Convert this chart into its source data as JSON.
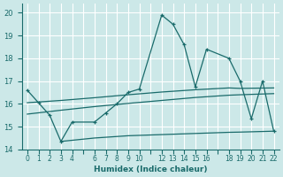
{
  "xlabel": "Humidex (Indice chaleur)",
  "bg_color": "#cce8e8",
  "grid_color": "#ffffff",
  "line_color": "#1a6b6b",
  "xlim": [
    -0.5,
    22.5
  ],
  "ylim": [
    14.0,
    20.4
  ],
  "xticks": [
    0,
    1,
    2,
    3,
    4,
    5,
    6,
    7,
    8,
    9,
    10,
    11,
    12,
    13,
    14,
    15,
    16,
    17,
    18,
    19,
    20,
    21,
    22
  ],
  "xtick_labels": [
    "0",
    "1",
    "2",
    "3",
    "4",
    "",
    "6",
    "7",
    "8",
    "9",
    "10",
    "",
    "1213",
    "14",
    "1516",
    "",
    "",
    "1819",
    "",
    "2021",
    "",
    "22",
    ""
  ],
  "yticks": [
    14,
    15,
    16,
    17,
    18,
    19,
    20
  ],
  "main_x": [
    0,
    1,
    2,
    3,
    4,
    6,
    7,
    8,
    9,
    10,
    12,
    13,
    14,
    15,
    16,
    18,
    19,
    20,
    21,
    22
  ],
  "main_y": [
    16.6,
    16.05,
    15.5,
    14.35,
    15.2,
    15.2,
    15.6,
    16.0,
    16.5,
    16.65,
    19.9,
    19.5,
    18.6,
    16.75,
    18.4,
    18.0,
    17.0,
    15.35,
    17.0,
    14.8
  ],
  "line1_x": [
    0,
    3,
    6,
    9,
    12,
    15,
    18,
    19,
    22
  ],
  "line1_y": [
    16.05,
    16.15,
    16.27,
    16.4,
    16.52,
    16.62,
    16.7,
    16.68,
    16.7
  ],
  "line2_x": [
    0,
    3,
    6,
    9,
    12,
    15,
    18,
    19,
    22
  ],
  "line2_y": [
    15.55,
    15.72,
    15.88,
    16.02,
    16.15,
    16.28,
    16.38,
    16.4,
    16.45
  ],
  "line3_x": [
    3,
    6,
    9,
    12,
    15,
    18,
    19,
    22
  ],
  "line3_y": [
    14.35,
    14.5,
    14.6,
    14.65,
    14.7,
    14.75,
    14.76,
    14.8
  ]
}
